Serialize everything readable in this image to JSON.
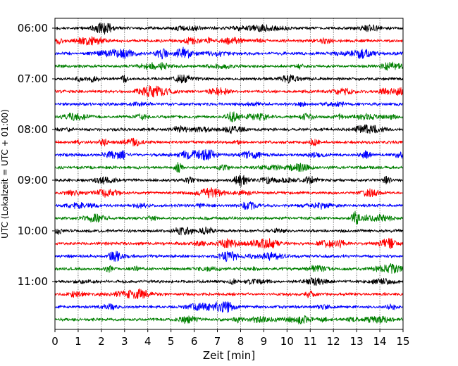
{
  "chart_data": {
    "type": "line",
    "xlabel": "Zeit  [min]",
    "ylabel": "UTC (Lokalzeit = UTC + 01:00)",
    "xlim": [
      0,
      15
    ],
    "xticks": [
      0,
      1,
      2,
      3,
      4,
      5,
      6,
      7,
      8,
      9,
      10,
      11,
      12,
      13,
      14,
      15
    ],
    "yticks": [
      {
        "label": "06:00",
        "trace_index": 0
      },
      {
        "label": "07:00",
        "trace_index": 4
      },
      {
        "label": "08:00",
        "trace_index": 8
      },
      {
        "label": "09:00",
        "trace_index": 12
      },
      {
        "label": "10:00",
        "trace_index": 16
      },
      {
        "label": "11:00",
        "trace_index": 20
      }
    ],
    "trace_count": 24,
    "trace_interval_min": 15,
    "colors": [
      "#000000",
      "#ff0000",
      "#0000ff",
      "#008000"
    ],
    "grid": "vertical dotted at each minute"
  }
}
